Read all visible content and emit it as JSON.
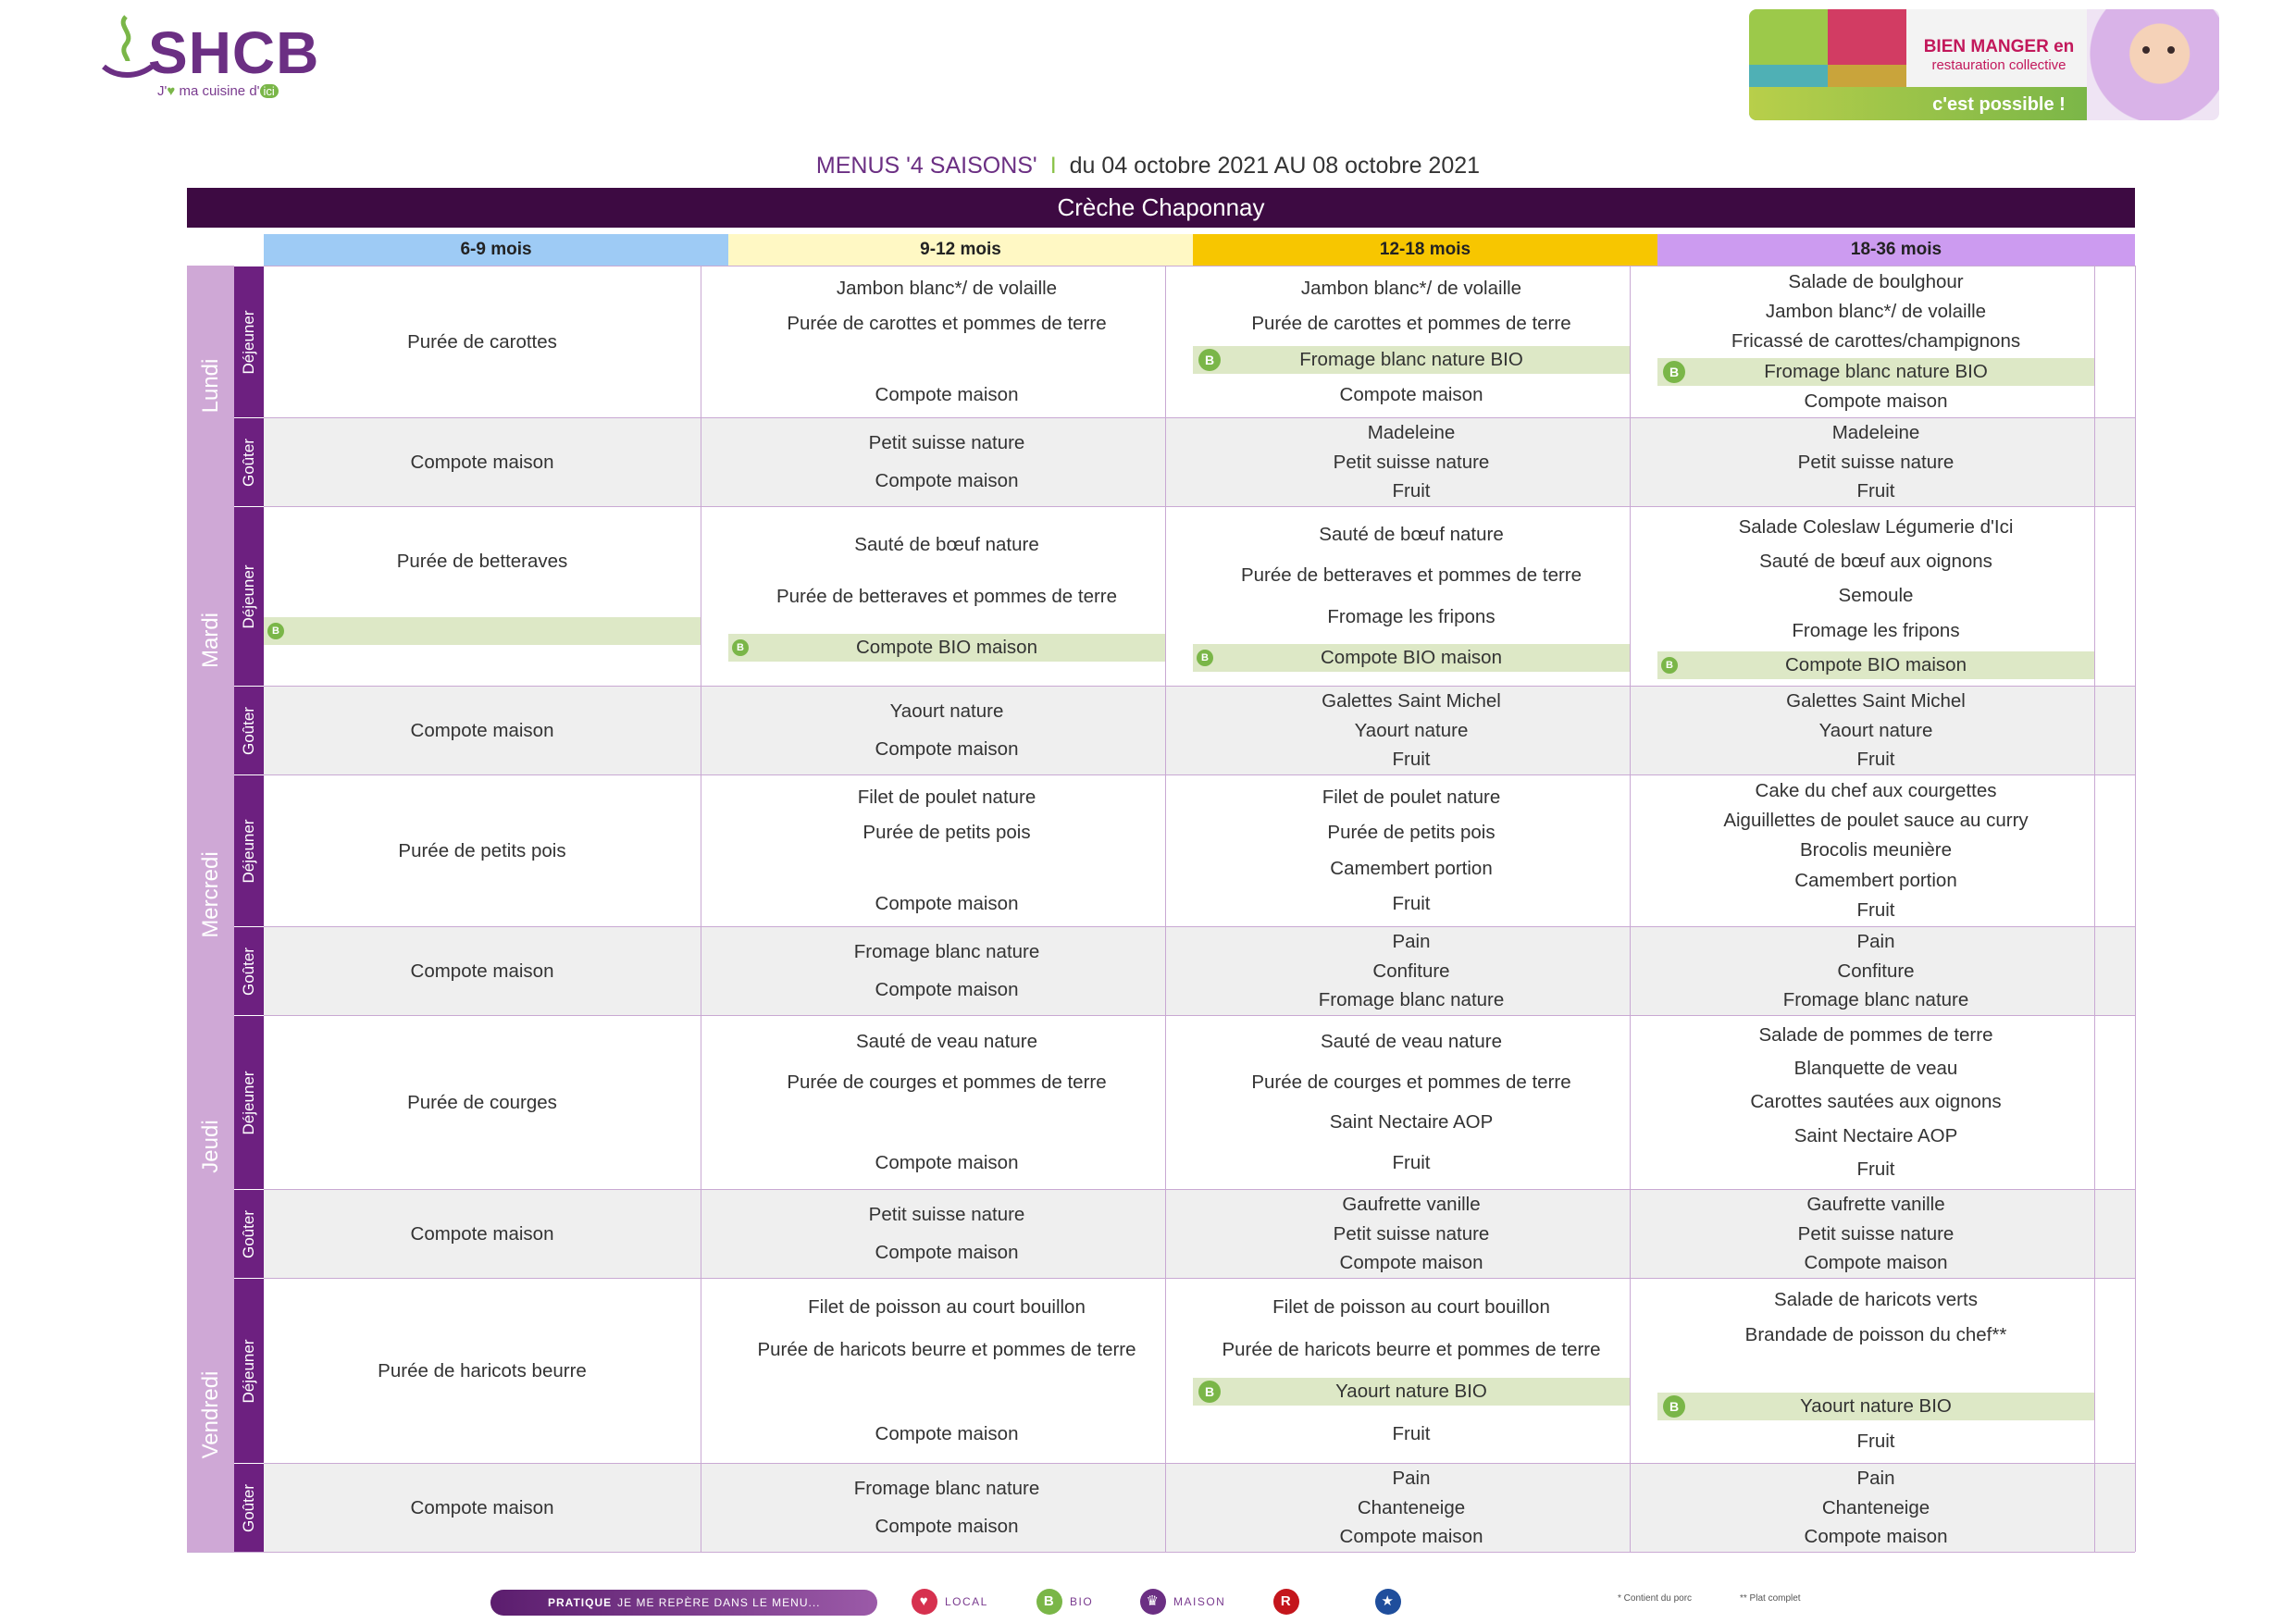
{
  "brand": {
    "name": "SHCB",
    "tagline_pre": "J'",
    "tagline_mid": " ma cuisine d'",
    "tagline_ici": "ici"
  },
  "banner": {
    "line1": "BIEN MANGER en",
    "line2": "restauration collective",
    "line3": "c'est possible !"
  },
  "title": {
    "menu": "MENUS '4 SAISONS'",
    "separator": "I",
    "dates": "du 04 octobre 2021 AU 08 octobre 2021"
  },
  "site": "Crèche Chaponnay",
  "ages": [
    {
      "label": "6-9 mois",
      "color": "#9ecbf5"
    },
    {
      "label": "9-12 mois",
      "color": "#fff8c4"
    },
    {
      "label": "12-18 mois",
      "color": "#f7c600"
    },
    {
      "label": "18-36 mois",
      "color": "#cc9bf0"
    }
  ],
  "meal_labels": {
    "lunch": "Déjeuner",
    "snack": "Goûter"
  },
  "days": [
    {
      "name": "Lundi",
      "lunch": [
        [
          {
            "t": "Purée de carottes"
          }
        ],
        [
          {
            "t": "Jambon blanc*/ de volaille"
          },
          {
            "t": "Purée de carottes et pommes de terre"
          },
          {
            "t": ""
          },
          {
            "t": "Compote maison"
          }
        ],
        [
          {
            "t": "Jambon blanc*/ de volaille"
          },
          {
            "t": "Purée de carottes et pommes de terre"
          },
          {
            "t": "Fromage blanc nature BIO",
            "bio": true
          },
          {
            "t": "Compote maison"
          }
        ],
        [
          {
            "t": "Salade de boulghour"
          },
          {
            "t": "Jambon blanc*/ de volaille"
          },
          {
            "t": "Fricassé de carottes/champignons"
          },
          {
            "t": "Fromage blanc nature BIO",
            "bio": true
          },
          {
            "t": "Compote maison"
          }
        ]
      ],
      "snack": [
        [
          {
            "t": "Compote maison"
          }
        ],
        [
          {
            "t": "Petit suisse nature"
          },
          {
            "t": "Compote maison"
          }
        ],
        [
          {
            "t": "Madeleine"
          },
          {
            "t": "Petit suisse nature"
          },
          {
            "t": "Fruit"
          }
        ],
        [
          {
            "t": "Madeleine"
          },
          {
            "t": "Petit suisse nature"
          },
          {
            "t": "Fruit"
          }
        ]
      ]
    },
    {
      "name": "Mardi",
      "lunch": [
        [
          {
            "t": "Purée de betteraves"
          },
          {
            "t": "",
            "bio": true,
            "small": true
          }
        ],
        [
          {
            "t": "Sauté de bœuf nature"
          },
          {
            "t": "Purée de betteraves et pommes de terre"
          },
          {
            "t": "Compote BIO maison",
            "bio": true,
            "small": true
          }
        ],
        [
          {
            "t": "Sauté de bœuf nature"
          },
          {
            "t": "Purée de betteraves et pommes de terre"
          },
          {
            "t": "Fromage les fripons"
          },
          {
            "t": "Compote BIO maison",
            "bio": true,
            "small": true
          }
        ],
        [
          {
            "t": "Salade Coleslaw Légumerie d'Ici"
          },
          {
            "t": "Sauté de bœuf aux oignons"
          },
          {
            "t": "Semoule"
          },
          {
            "t": "Fromage les fripons"
          },
          {
            "t": "Compote BIO maison",
            "bio": true,
            "small": true
          }
        ]
      ],
      "snack": [
        [
          {
            "t": "Compote maison"
          }
        ],
        [
          {
            "t": "Yaourt nature"
          },
          {
            "t": "Compote maison"
          }
        ],
        [
          {
            "t": "Galettes Saint Michel"
          },
          {
            "t": "Yaourt nature"
          },
          {
            "t": "Fruit"
          }
        ],
        [
          {
            "t": "Galettes Saint Michel"
          },
          {
            "t": "Yaourt nature"
          },
          {
            "t": "Fruit"
          }
        ]
      ]
    },
    {
      "name": "Mercredi",
      "lunch": [
        [
          {
            "t": "Purée de petits pois"
          }
        ],
        [
          {
            "t": "Filet de poulet nature"
          },
          {
            "t": "Purée de petits pois"
          },
          {
            "t": ""
          },
          {
            "t": "Compote maison"
          }
        ],
        [
          {
            "t": "Filet de poulet nature"
          },
          {
            "t": "Purée de petits pois"
          },
          {
            "t": "Camembert portion"
          },
          {
            "t": "Fruit"
          }
        ],
        [
          {
            "t": "Cake du chef aux courgettes"
          },
          {
            "t": "Aiguillettes de poulet sauce au curry"
          },
          {
            "t": "Brocolis meunière"
          },
          {
            "t": "Camembert portion"
          },
          {
            "t": "Fruit"
          }
        ]
      ],
      "snack": [
        [
          {
            "t": "Compote maison"
          }
        ],
        [
          {
            "t": "Fromage blanc nature"
          },
          {
            "t": "Compote maison"
          }
        ],
        [
          {
            "t": "Pain"
          },
          {
            "t": "Confiture"
          },
          {
            "t": "Fromage blanc nature"
          }
        ],
        [
          {
            "t": "Pain"
          },
          {
            "t": "Confiture"
          },
          {
            "t": "Fromage blanc nature"
          }
        ]
      ]
    },
    {
      "name": "Jeudi",
      "lunch": [
        [
          {
            "t": "Purée de courges"
          }
        ],
        [
          {
            "t": "Sauté de veau nature"
          },
          {
            "t": "Purée de courges et pommes de terre"
          },
          {
            "t": ""
          },
          {
            "t": "Compote maison"
          }
        ],
        [
          {
            "t": "Sauté de veau nature"
          },
          {
            "t": "Purée de courges et pommes de terre"
          },
          {
            "t": "Saint Nectaire AOP"
          },
          {
            "t": "Fruit"
          }
        ],
        [
          {
            "t": "Salade de pommes de terre"
          },
          {
            "t": "Blanquette de veau"
          },
          {
            "t": "Carottes sautées aux oignons"
          },
          {
            "t": "Saint Nectaire AOP"
          },
          {
            "t": "Fruit"
          }
        ]
      ],
      "snack": [
        [
          {
            "t": "Compote maison"
          }
        ],
        [
          {
            "t": "Petit suisse nature"
          },
          {
            "t": "Compote maison"
          }
        ],
        [
          {
            "t": "Gaufrette vanille"
          },
          {
            "t": "Petit suisse nature"
          },
          {
            "t": "Compote maison"
          }
        ],
        [
          {
            "t": "Gaufrette vanille"
          },
          {
            "t": "Petit suisse nature"
          },
          {
            "t": "Compote maison"
          }
        ]
      ]
    },
    {
      "name": "Vendredi",
      "lunch": [
        [
          {
            "t": "Purée de haricots beurre"
          }
        ],
        [
          {
            "t": "Filet de poisson au court bouillon"
          },
          {
            "t": "Purée de haricots beurre et pommes de terre"
          },
          {
            "t": ""
          },
          {
            "t": "Compote maison"
          }
        ],
        [
          {
            "t": "Filet de poisson au court bouillon"
          },
          {
            "t": "Purée de haricots beurre et pommes de terre"
          },
          {
            "t": "Yaourt nature BIO",
            "bio": true
          },
          {
            "t": "Fruit"
          }
        ],
        [
          {
            "t": "Salade de haricots verts"
          },
          {
            "t": "Brandade de poisson du chef**"
          },
          {
            "t": ""
          },
          {
            "t": "Yaourt nature BIO",
            "bio": true
          },
          {
            "t": "Fruit"
          }
        ]
      ],
      "snack": [
        [
          {
            "t": "Compote maison"
          }
        ],
        [
          {
            "t": "Fromage blanc nature"
          },
          {
            "t": "Compote maison"
          }
        ],
        [
          {
            "t": "Pain"
          },
          {
            "t": "Chanteneige"
          },
          {
            "t": "Compote maison"
          }
        ],
        [
          {
            "t": "Pain"
          },
          {
            "t": "Chanteneige"
          },
          {
            "t": "Compote maison"
          }
        ]
      ]
    }
  ],
  "bio_symbol": "B",
  "legend": {
    "bar_bold": "PRATIQUE",
    "bar_text": "JE ME REPÈRE DANS LE MENU...",
    "items": [
      {
        "symbol": "♥",
        "label": "LOCAL",
        "color": "#d6314f"
      },
      {
        "symbol": "B",
        "label": "BIO",
        "color": "#7ab648"
      },
      {
        "symbol": "♛",
        "label": "MAISON",
        "color": "#6b2f83"
      },
      {
        "symbol": "R",
        "label": "",
        "color": "#c4161c"
      },
      {
        "symbol": "★",
        "label": "",
        "color": "#1f4e9c"
      }
    ],
    "note1": "* Contient du porc",
    "note2": "** Plat complet"
  }
}
